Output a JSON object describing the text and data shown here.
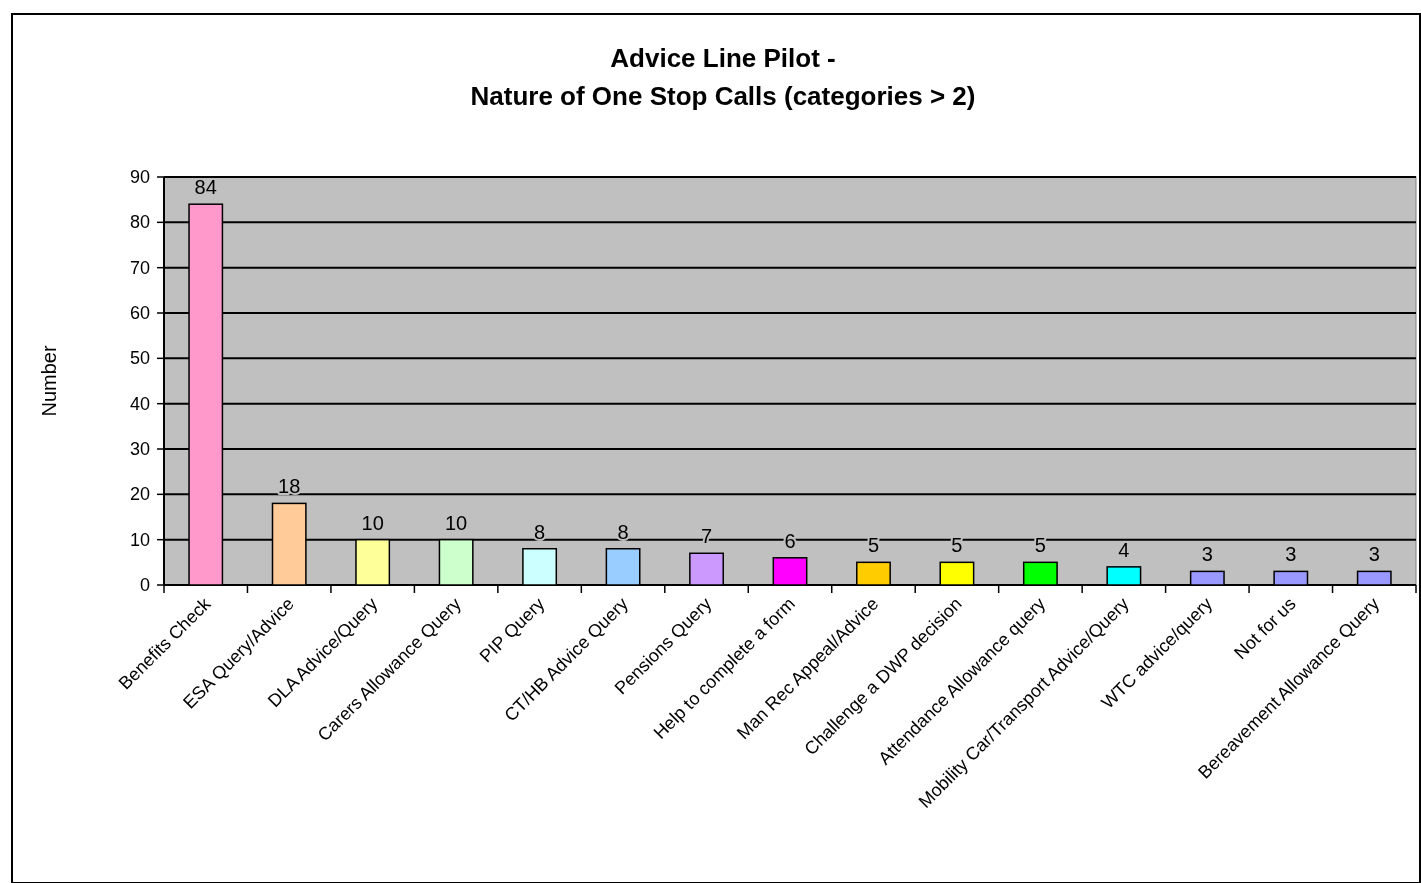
{
  "chart_data": {
    "type": "bar",
    "title": "Advice Line Pilot -\nNature of One Stop Calls (categories > 2)",
    "ylabel": "Number",
    "categories": [
      "Benefits Check",
      "ESA Query/Advice",
      "DLA Advice/Query",
      "Carers Allowance Query",
      "PIP Query",
      "CT/HB Advice Query",
      "Pensions Query",
      "Help to complete a form",
      "Man Rec Appeal/Advice",
      "Challenge a DWP decision",
      "Attendance Allowance query",
      "Mobility Car/Transport Advice/Query",
      "WTC advice/query",
      "Not for us",
      "Bereavement  Allowance Query"
    ],
    "values": [
      84,
      18,
      10,
      10,
      8,
      8,
      7,
      6,
      5,
      5,
      5,
      4,
      3,
      3,
      3
    ],
    "colors": [
      "#ff99cc",
      "#ffcc99",
      "#ffff99",
      "#ccffcc",
      "#ccffff",
      "#99ccff",
      "#cc99ff",
      "#ff00ff",
      "#ffcc00",
      "#ffff00",
      "#00ff00",
      "#00ffff",
      "#9999ff",
      "#9999ff",
      "#9999ff"
    ],
    "ylim": [
      0,
      90
    ],
    "yticks": [
      0,
      10,
      20,
      30,
      40,
      50,
      60,
      70,
      80,
      90
    ],
    "grid": "y",
    "data_labels": true
  }
}
